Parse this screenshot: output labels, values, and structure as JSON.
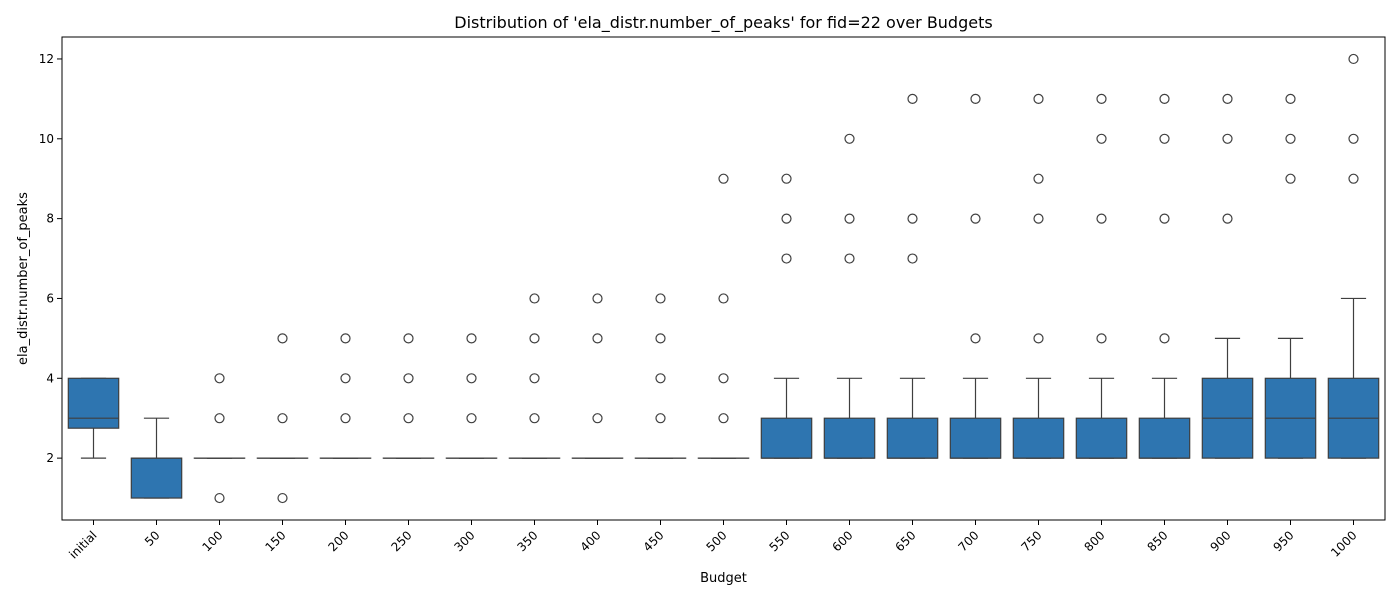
{
  "chart_data": {
    "type": "box",
    "title": "Distribution of 'ela_distr.number_of_peaks' for fid=22 over Budgets",
    "xlabel": "Budget",
    "ylabel": "ela_distr.number_of_peaks",
    "ylim": [
      0.45,
      12.55
    ],
    "yticks": [
      2,
      4,
      6,
      8,
      10,
      12
    ],
    "color": "#2e75b0",
    "categories": [
      "initial",
      "50",
      "100",
      "150",
      "200",
      "250",
      "300",
      "350",
      "400",
      "450",
      "500",
      "550",
      "600",
      "650",
      "700",
      "750",
      "800",
      "850",
      "900",
      "950",
      "1000"
    ],
    "boxes": [
      {
        "q1": 2.75,
        "median": 3,
        "q3": 4,
        "whislo": 2,
        "whishi": 4,
        "outliers": []
      },
      {
        "q1": 1,
        "median": 2,
        "q3": 2,
        "whislo": 1,
        "whishi": 3,
        "outliers": []
      },
      {
        "q1": 2,
        "median": 2,
        "q3": 2,
        "whislo": 2,
        "whishi": 2,
        "outliers": [
          1,
          3,
          4
        ]
      },
      {
        "q1": 2,
        "median": 2,
        "q3": 2,
        "whislo": 2,
        "whishi": 2,
        "outliers": [
          1,
          3,
          5
        ]
      },
      {
        "q1": 2,
        "median": 2,
        "q3": 2,
        "whislo": 2,
        "whishi": 2,
        "outliers": [
          3,
          4,
          5
        ]
      },
      {
        "q1": 2,
        "median": 2,
        "q3": 2,
        "whislo": 2,
        "whishi": 2,
        "outliers": [
          3,
          4,
          5
        ]
      },
      {
        "q1": 2,
        "median": 2,
        "q3": 2,
        "whislo": 2,
        "whishi": 2,
        "outliers": [
          3,
          4,
          5
        ]
      },
      {
        "q1": 2,
        "median": 2,
        "q3": 2,
        "whislo": 2,
        "whishi": 2,
        "outliers": [
          3,
          4,
          5,
          6
        ]
      },
      {
        "q1": 2,
        "median": 2,
        "q3": 2,
        "whislo": 2,
        "whishi": 2,
        "outliers": [
          3,
          5,
          6
        ]
      },
      {
        "q1": 2,
        "median": 2,
        "q3": 2,
        "whislo": 2,
        "whishi": 2,
        "outliers": [
          3,
          4,
          5,
          6
        ]
      },
      {
        "q1": 2,
        "median": 2,
        "q3": 2,
        "whislo": 2,
        "whishi": 2,
        "outliers": [
          3,
          4,
          6,
          9
        ]
      },
      {
        "q1": 2,
        "median": 2,
        "q3": 3,
        "whislo": 2,
        "whishi": 4,
        "outliers": [
          7,
          8,
          9
        ]
      },
      {
        "q1": 2,
        "median": 2,
        "q3": 3,
        "whislo": 2,
        "whishi": 4,
        "outliers": [
          7,
          8,
          10
        ]
      },
      {
        "q1": 2,
        "median": 2,
        "q3": 3,
        "whislo": 2,
        "whishi": 4,
        "outliers": [
          7,
          8,
          11
        ]
      },
      {
        "q1": 2,
        "median": 2,
        "q3": 3,
        "whislo": 2,
        "whishi": 4,
        "outliers": [
          5,
          8,
          11
        ]
      },
      {
        "q1": 2,
        "median": 2,
        "q3": 3,
        "whislo": 2,
        "whishi": 4,
        "outliers": [
          5,
          8,
          9,
          11
        ]
      },
      {
        "q1": 2,
        "median": 2,
        "q3": 3,
        "whislo": 2,
        "whishi": 4,
        "outliers": [
          5,
          8,
          10,
          11
        ]
      },
      {
        "q1": 2,
        "median": 2,
        "q3": 3,
        "whislo": 2,
        "whishi": 4,
        "outliers": [
          5,
          8,
          10,
          11
        ]
      },
      {
        "q1": 2,
        "median": 3,
        "q3": 4,
        "whislo": 2,
        "whishi": 5,
        "outliers": [
          8,
          10,
          11
        ]
      },
      {
        "q1": 2,
        "median": 3,
        "q3": 4,
        "whislo": 2,
        "whishi": 5,
        "outliers": [
          9,
          10,
          11
        ]
      },
      {
        "q1": 2,
        "median": 3,
        "q3": 4,
        "whislo": 2,
        "whishi": 6,
        "outliers": [
          9,
          10,
          12
        ]
      }
    ]
  }
}
